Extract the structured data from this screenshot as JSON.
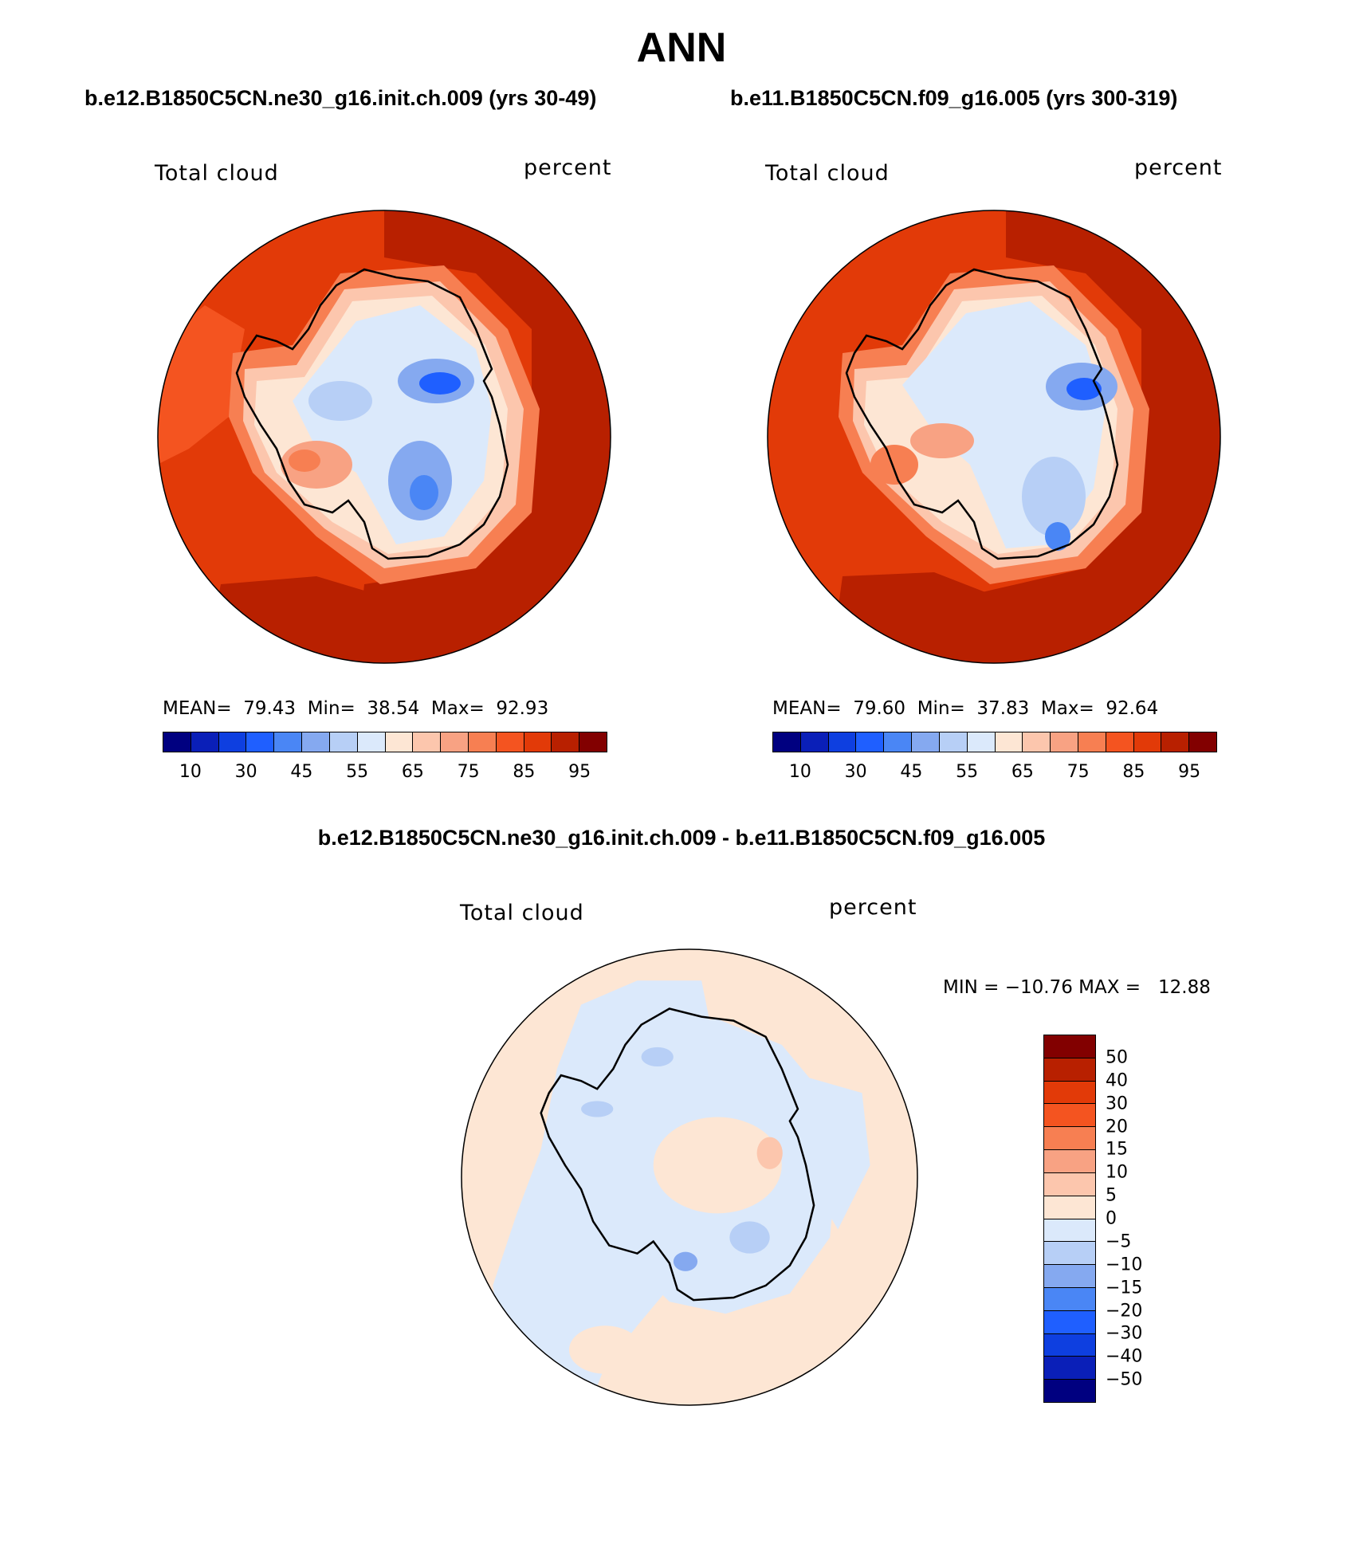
{
  "figure": {
    "title": "ANN",
    "case1": "b.e12.B1850C5CN.ne30_g16.init.ch.009 (yrs 30-49)",
    "case2": "b.e11.B1850C5CN.f09_g16.005 (yrs 300-319)",
    "diff_title": "b.e12.B1850C5CN.ne30_g16.init.ch.009 - b.e11.B1850C5CN.f09_g16.005"
  },
  "panel1": {
    "variable": "Total cloud",
    "units": "percent",
    "stats": {
      "mean_label": "MEAN=",
      "mean": "79.43",
      "min_label": "Min=",
      "min": "38.54",
      "max_label": "Max=",
      "max": "92.93"
    }
  },
  "panel2": {
    "variable": "Total cloud",
    "units": "percent",
    "stats": {
      "mean_label": "MEAN=",
      "mean": "79.60",
      "min_label": "Min=",
      "min": "37.83",
      "max_label": "Max=",
      "max": "92.64"
    }
  },
  "diff_panel": {
    "variable": "Total cloud",
    "units": "percent",
    "minmax": "MIN = −10.76 MAX =   12.88"
  },
  "colorbar_main": {
    "colors": [
      "#000080",
      "#0a1fb8",
      "#0e3fe0",
      "#1f5fff",
      "#4a86f5",
      "#85a9f0",
      "#b7cff6",
      "#dbe9fb",
      "#fde6d4",
      "#fcc6ad",
      "#f8a283",
      "#f77f52",
      "#f45420",
      "#e23a08",
      "#b82000",
      "#820000"
    ],
    "tick_labels": [
      "10",
      "30",
      "45",
      "55",
      "65",
      "75",
      "85",
      "95"
    ]
  },
  "colorbar_diff": {
    "colors": [
      "#820000",
      "#b82000",
      "#e23a08",
      "#f45420",
      "#f77f52",
      "#f8a283",
      "#fcc6ad",
      "#fde6d4",
      "#dbe9fb",
      "#b7cff6",
      "#85a9f0",
      "#4a86f5",
      "#1f5fff",
      "#0e3fe0",
      "#0a1fb8",
      "#000080"
    ],
    "tick_labels": [
      "50",
      "40",
      "30",
      "20",
      "15",
      "10",
      "5",
      "0",
      "−5",
      "−10",
      "−15",
      "−20",
      "−30",
      "−40",
      "−50"
    ]
  },
  "colors": {
    "ocean_high": "#b82000",
    "ocean_mid": "#e23a08",
    "ocean_low": "#f45420",
    "diff_pos": "#fde6d4",
    "diff_neg": "#dbe9fb"
  }
}
